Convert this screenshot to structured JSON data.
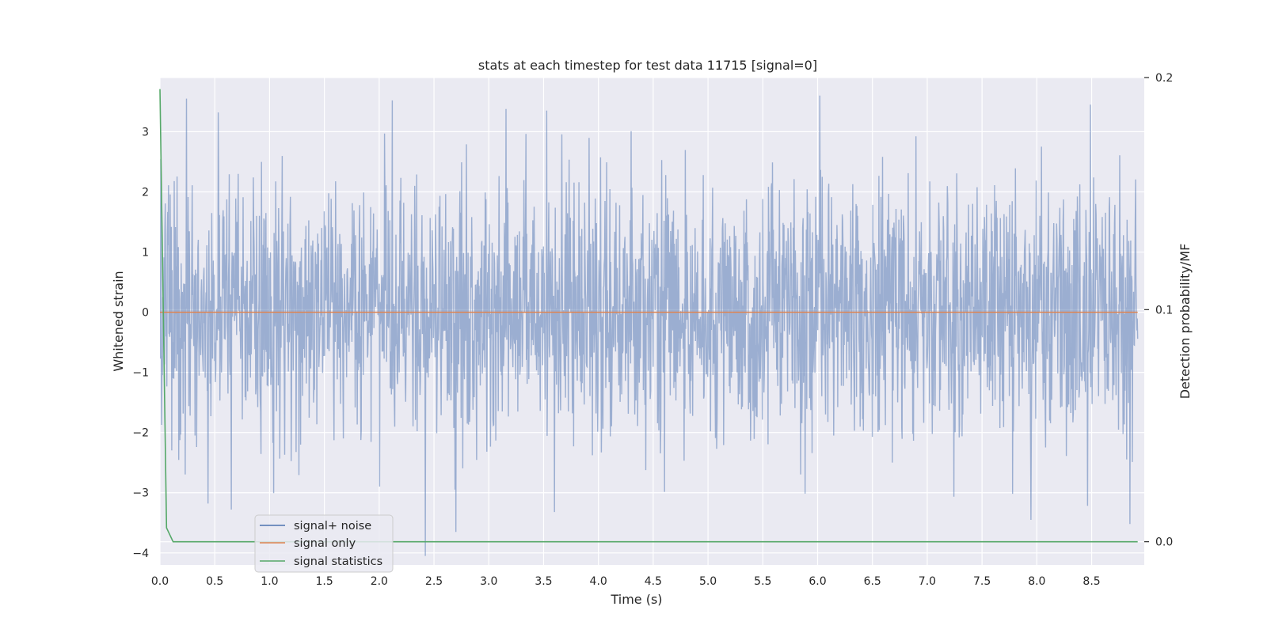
{
  "chart_data": {
    "type": "line",
    "title": "stats at each timestep for test data 11715 [signal=0]",
    "xlabel": "Time (s)",
    "ylabel": "Whitened strain",
    "y2label": "Detection probability/MF",
    "xlim": [
      0,
      8.98
    ],
    "ylim": [
      -4.2,
      3.9
    ],
    "y2lim": [
      -0.01,
      0.2
    ],
    "xticks": [
      "0.0",
      "0.5",
      "1.0",
      "1.5",
      "2.0",
      "2.5",
      "3.0",
      "3.5",
      "4.0",
      "4.5",
      "5.0",
      "5.5",
      "6.0",
      "6.5",
      "7.0",
      "7.5",
      "8.0",
      "8.5"
    ],
    "yticks": [
      "3",
      "2",
      "1",
      "0",
      "−1",
      "−2",
      "−3",
      "−4"
    ],
    "y2ticks": [
      "0.2",
      "0.1",
      "0.0"
    ],
    "grid": true,
    "legend_position": "lower-left",
    "series": [
      {
        "name": "signal+ noise",
        "axis": "left",
        "color": "#4c72b0",
        "description_range": [
          -3.7,
          3.6
        ],
        "notable_peaks": [
          {
            "x": 0.24,
            "y": 3.55
          },
          {
            "x": 2.12,
            "y": 3.52
          },
          {
            "x": 8.49,
            "y": 3.45
          },
          {
            "x": 3.53,
            "y": 3.35
          },
          {
            "x": 0.53,
            "y": 3.32
          }
        ],
        "notable_troughs": [
          {
            "x": 2.42,
            "y": -4.05
          },
          {
            "x": 2.7,
            "y": -3.65
          },
          {
            "x": 8.85,
            "y": -3.52
          },
          {
            "x": 3.6,
            "y": -3.32
          },
          {
            "x": 0.65,
            "y": -3.28
          },
          {
            "x": 0.44,
            "y": -3.18
          }
        ]
      },
      {
        "name": "signal only",
        "axis": "left",
        "color": "#dd8452",
        "x": [
          0,
          8.92
        ],
        "values": [
          0,
          0
        ]
      },
      {
        "name": "signal statistics",
        "axis": "right",
        "color": "#55a868",
        "x": [
          0,
          0.06,
          0.12,
          0.5,
          1.0,
          2.0,
          3.0,
          4.0,
          5.0,
          6.0,
          7.0,
          8.0,
          8.92
        ],
        "values": [
          0.195,
          0.006,
          0.0,
          0.0,
          0.0,
          0.0,
          0.0,
          0.0,
          0.0,
          0.0,
          0.0,
          0.0,
          0.0
        ]
      }
    ]
  }
}
